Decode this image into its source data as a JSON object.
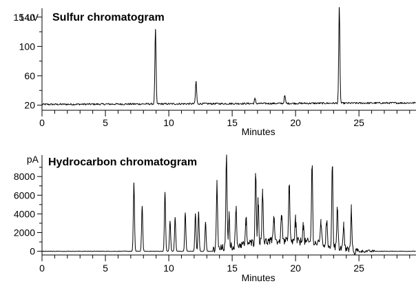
{
  "chart_data": [
    {
      "type": "line",
      "title": "Sulfur chromatogram",
      "unit": "15 uV",
      "xlabel": "Minutes",
      "ylabel": "",
      "xlim": [
        0,
        29.5
      ],
      "ylim": [
        13,
        152
      ],
      "x_ticks": [
        0,
        5,
        10,
        15,
        20,
        25
      ],
      "y_ticks": [
        20,
        60,
        100,
        140
      ],
      "grid": false,
      "baseline": 21,
      "noise": 1.2,
      "drift": 0.07,
      "peaks": [
        {
          "x": 8.95,
          "y": 123
        },
        {
          "x": 12.15,
          "y": 52
        },
        {
          "x": 16.8,
          "y": 28
        },
        {
          "x": 19.15,
          "y": 32
        },
        {
          "x": 23.45,
          "y": 153
        }
      ]
    },
    {
      "type": "line",
      "title": "Hydrocarbon chromatogram",
      "unit": "pA",
      "xlabel": "Minutes",
      "ylabel": "",
      "xlim": [
        0,
        29.5
      ],
      "ylim": [
        -400,
        10300
      ],
      "x_ticks": [
        0,
        5,
        10,
        15,
        20,
        25
      ],
      "y_ticks": [
        0,
        2000,
        4000,
        6000,
        8000
      ],
      "grid": false,
      "baseline": 0,
      "noise": 25,
      "hump": {
        "start": 13.5,
        "end": 26.2,
        "level": 1100
      },
      "peaks": [
        {
          "x": 7.25,
          "y": 7300
        },
        {
          "x": 7.9,
          "y": 4800
        },
        {
          "x": 9.7,
          "y": 6300
        },
        {
          "x": 10.1,
          "y": 3200
        },
        {
          "x": 10.5,
          "y": 3600
        },
        {
          "x": 11.3,
          "y": 4100
        },
        {
          "x": 12.1,
          "y": 4000
        },
        {
          "x": 12.35,
          "y": 4200
        },
        {
          "x": 12.9,
          "y": 3100
        },
        {
          "x": 13.8,
          "y": 7500
        },
        {
          "x": 14.55,
          "y": 10000
        },
        {
          "x": 14.75,
          "y": 3500
        },
        {
          "x": 15.3,
          "y": 4200
        },
        {
          "x": 16.1,
          "y": 2800
        },
        {
          "x": 16.85,
          "y": 8000
        },
        {
          "x": 17.05,
          "y": 4800
        },
        {
          "x": 17.4,
          "y": 6100
        },
        {
          "x": 18.3,
          "y": 3100
        },
        {
          "x": 18.9,
          "y": 3400
        },
        {
          "x": 19.5,
          "y": 6300
        },
        {
          "x": 20.0,
          "y": 2600
        },
        {
          "x": 20.6,
          "y": 2300
        },
        {
          "x": 21.3,
          "y": 8800
        },
        {
          "x": 22.0,
          "y": 2900
        },
        {
          "x": 22.45,
          "y": 2800
        },
        {
          "x": 22.9,
          "y": 9000
        },
        {
          "x": 23.3,
          "y": 4300
        },
        {
          "x": 23.8,
          "y": 2600
        },
        {
          "x": 24.4,
          "y": 4500
        }
      ]
    }
  ]
}
